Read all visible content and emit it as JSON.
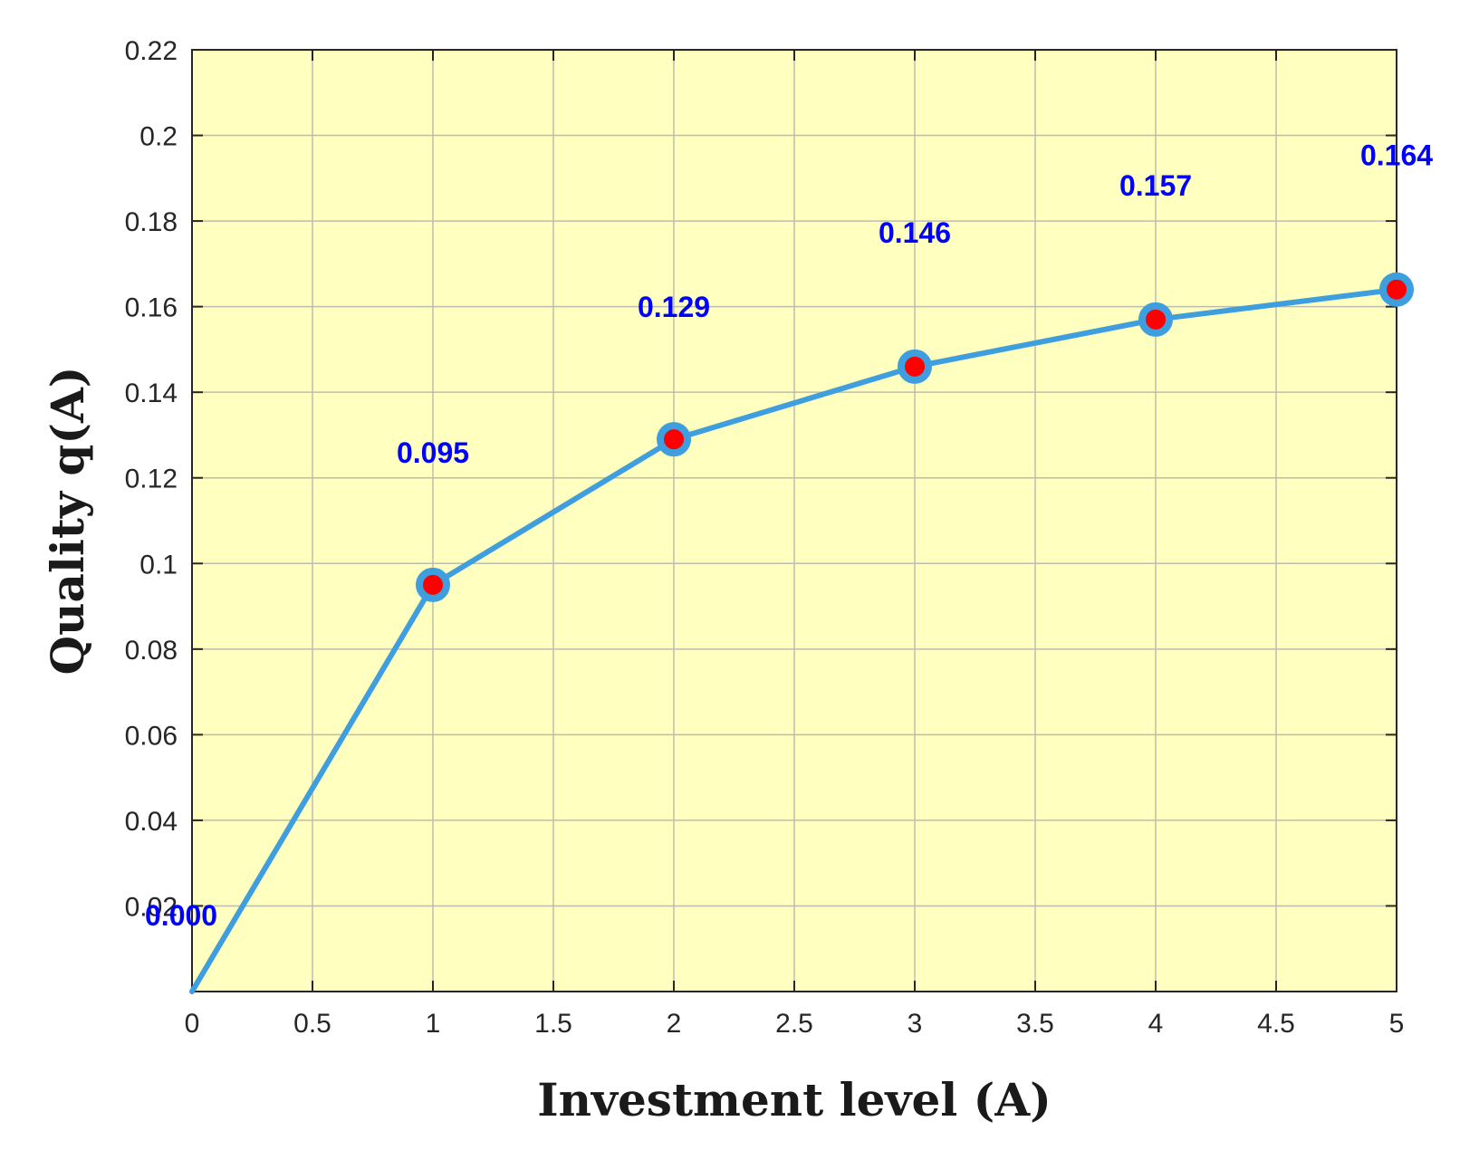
{
  "chart_data": {
    "type": "line",
    "title": "",
    "xlabel": "Investment level (A)",
    "ylabel": "Quality q(A)",
    "xlim": [
      0,
      5
    ],
    "ylim": [
      0,
      0.22
    ],
    "x_ticks": [
      "0",
      "0.5",
      "1",
      "1.5",
      "2",
      "2.5",
      "3",
      "3.5",
      "4",
      "4.5",
      "5"
    ],
    "y_ticks": [
      "0.02",
      "0.04",
      "0.06",
      "0.08",
      "0.1",
      "0.12",
      "0.14",
      "0.16",
      "0.18",
      "0.2",
      "0.22"
    ],
    "x": [
      0,
      1,
      2,
      3,
      4,
      5
    ],
    "y": [
      0.0,
      0.095,
      0.129,
      0.146,
      0.157,
      0.164
    ],
    "point_labels": [
      "0.000",
      "0.095",
      "0.129",
      "0.146",
      "0.157",
      "0.164"
    ],
    "grid": true,
    "colors": {
      "plot_background": "#ffffbf",
      "line": "#3e9ede",
      "marker_fill": "#ff0000",
      "label": "#0000ff"
    }
  }
}
